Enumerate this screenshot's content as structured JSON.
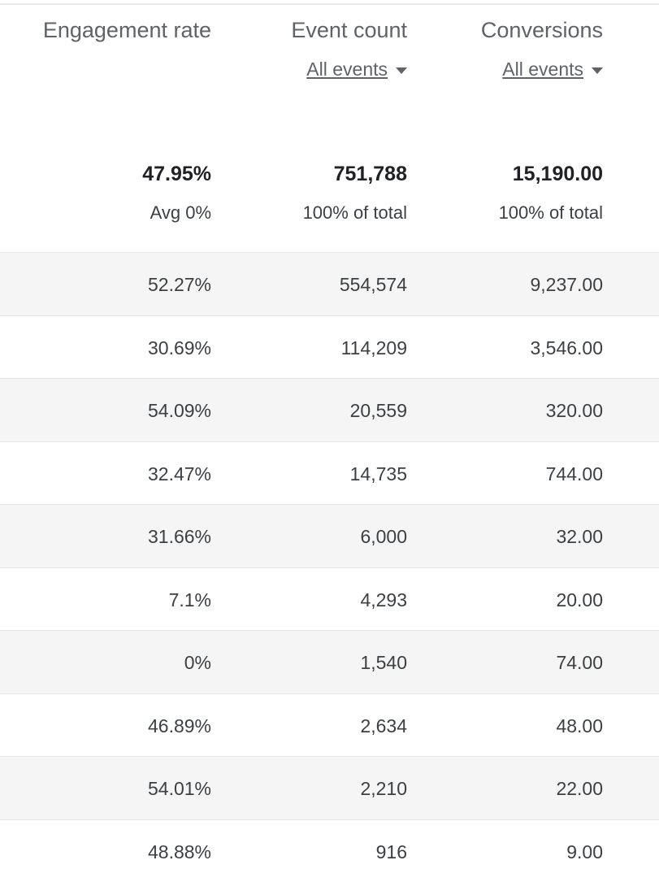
{
  "columns": [
    {
      "header": "Engagement rate",
      "total": "47.95%",
      "total_sub": "Avg 0%"
    },
    {
      "header": "Event count",
      "selector": "All events",
      "total": "751,788",
      "total_sub": "100% of total"
    },
    {
      "header": "Conversions",
      "selector": "All events",
      "total": "15,190.00",
      "total_sub": "100% of total"
    }
  ],
  "rows": [
    [
      "52.27%",
      "554,574",
      "9,237.00"
    ],
    [
      "30.69%",
      "114,209",
      "3,546.00"
    ],
    [
      "54.09%",
      "20,559",
      "320.00"
    ],
    [
      "32.47%",
      "14,735",
      "744.00"
    ],
    [
      "31.66%",
      "6,000",
      "32.00"
    ],
    [
      "7.1%",
      "4,293",
      "20.00"
    ],
    [
      "0%",
      "1,540",
      "74.00"
    ],
    [
      "46.89%",
      "2,634",
      "48.00"
    ],
    [
      "54.01%",
      "2,210",
      "22.00"
    ],
    [
      "48.88%",
      "916",
      "9.00"
    ]
  ]
}
